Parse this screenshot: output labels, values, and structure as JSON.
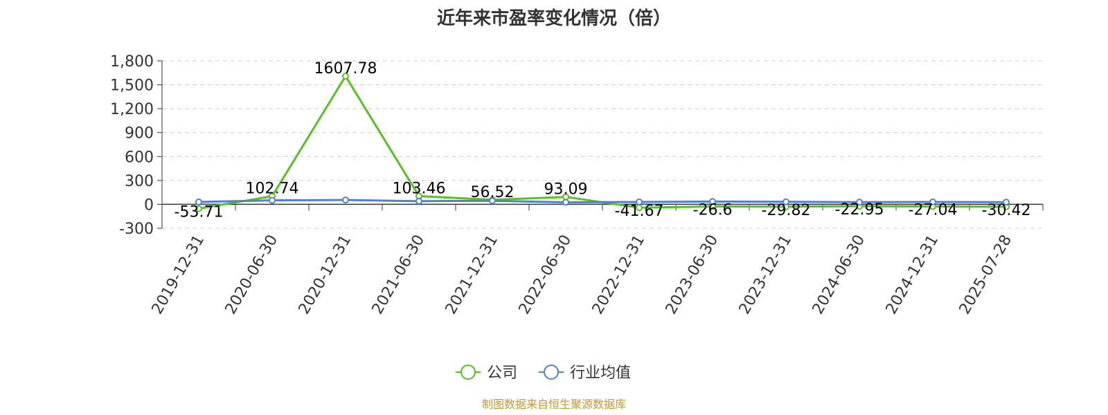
{
  "chart_data": {
    "type": "line",
    "title": "近年来市盈率变化情况（倍）",
    "categories": [
      "2019-12-31",
      "2020-06-30",
      "2020-12-31",
      "2021-06-30",
      "2021-12-31",
      "2022-06-30",
      "2022-12-31",
      "2023-06-30",
      "2023-12-31",
      "2024-06-30",
      "2024-12-31",
      "2025-07-28"
    ],
    "series": [
      {
        "name": "公司",
        "color": "#52c41a",
        "values": [
          -53.71,
          102.74,
          1607.78,
          103.46,
          56.52,
          93.09,
          -41.67,
          -26.6,
          -29.82,
          -22.95,
          -27.04,
          -30.42
        ],
        "labels": [
          "-53.71",
          "102.74",
          "1607.78",
          "103.46",
          "56.52",
          "93.09",
          "-41.67",
          "-26.6",
          "-29.82",
          "-22.95",
          "-27.04",
          "-30.42"
        ]
      },
      {
        "name": "行业均值",
        "color": "#4e7fd9",
        "values": [
          30,
          50,
          55,
          40,
          45,
          25,
          30,
          35,
          32,
          28,
          30,
          28
        ]
      }
    ],
    "ylim": [
      -300,
      1800
    ],
    "yticks": [
      -300,
      0,
      300,
      600,
      900,
      1200,
      1500,
      1800
    ],
    "ytick_labels": [
      "-300",
      "0",
      "300",
      "600",
      "900",
      "1,200",
      "1,500",
      "1,800"
    ],
    "grid": true,
    "legend_position": "bottom-center",
    "xlabel": "",
    "ylabel": ""
  },
  "source_note": "制图数据来自恒生聚源数据库"
}
